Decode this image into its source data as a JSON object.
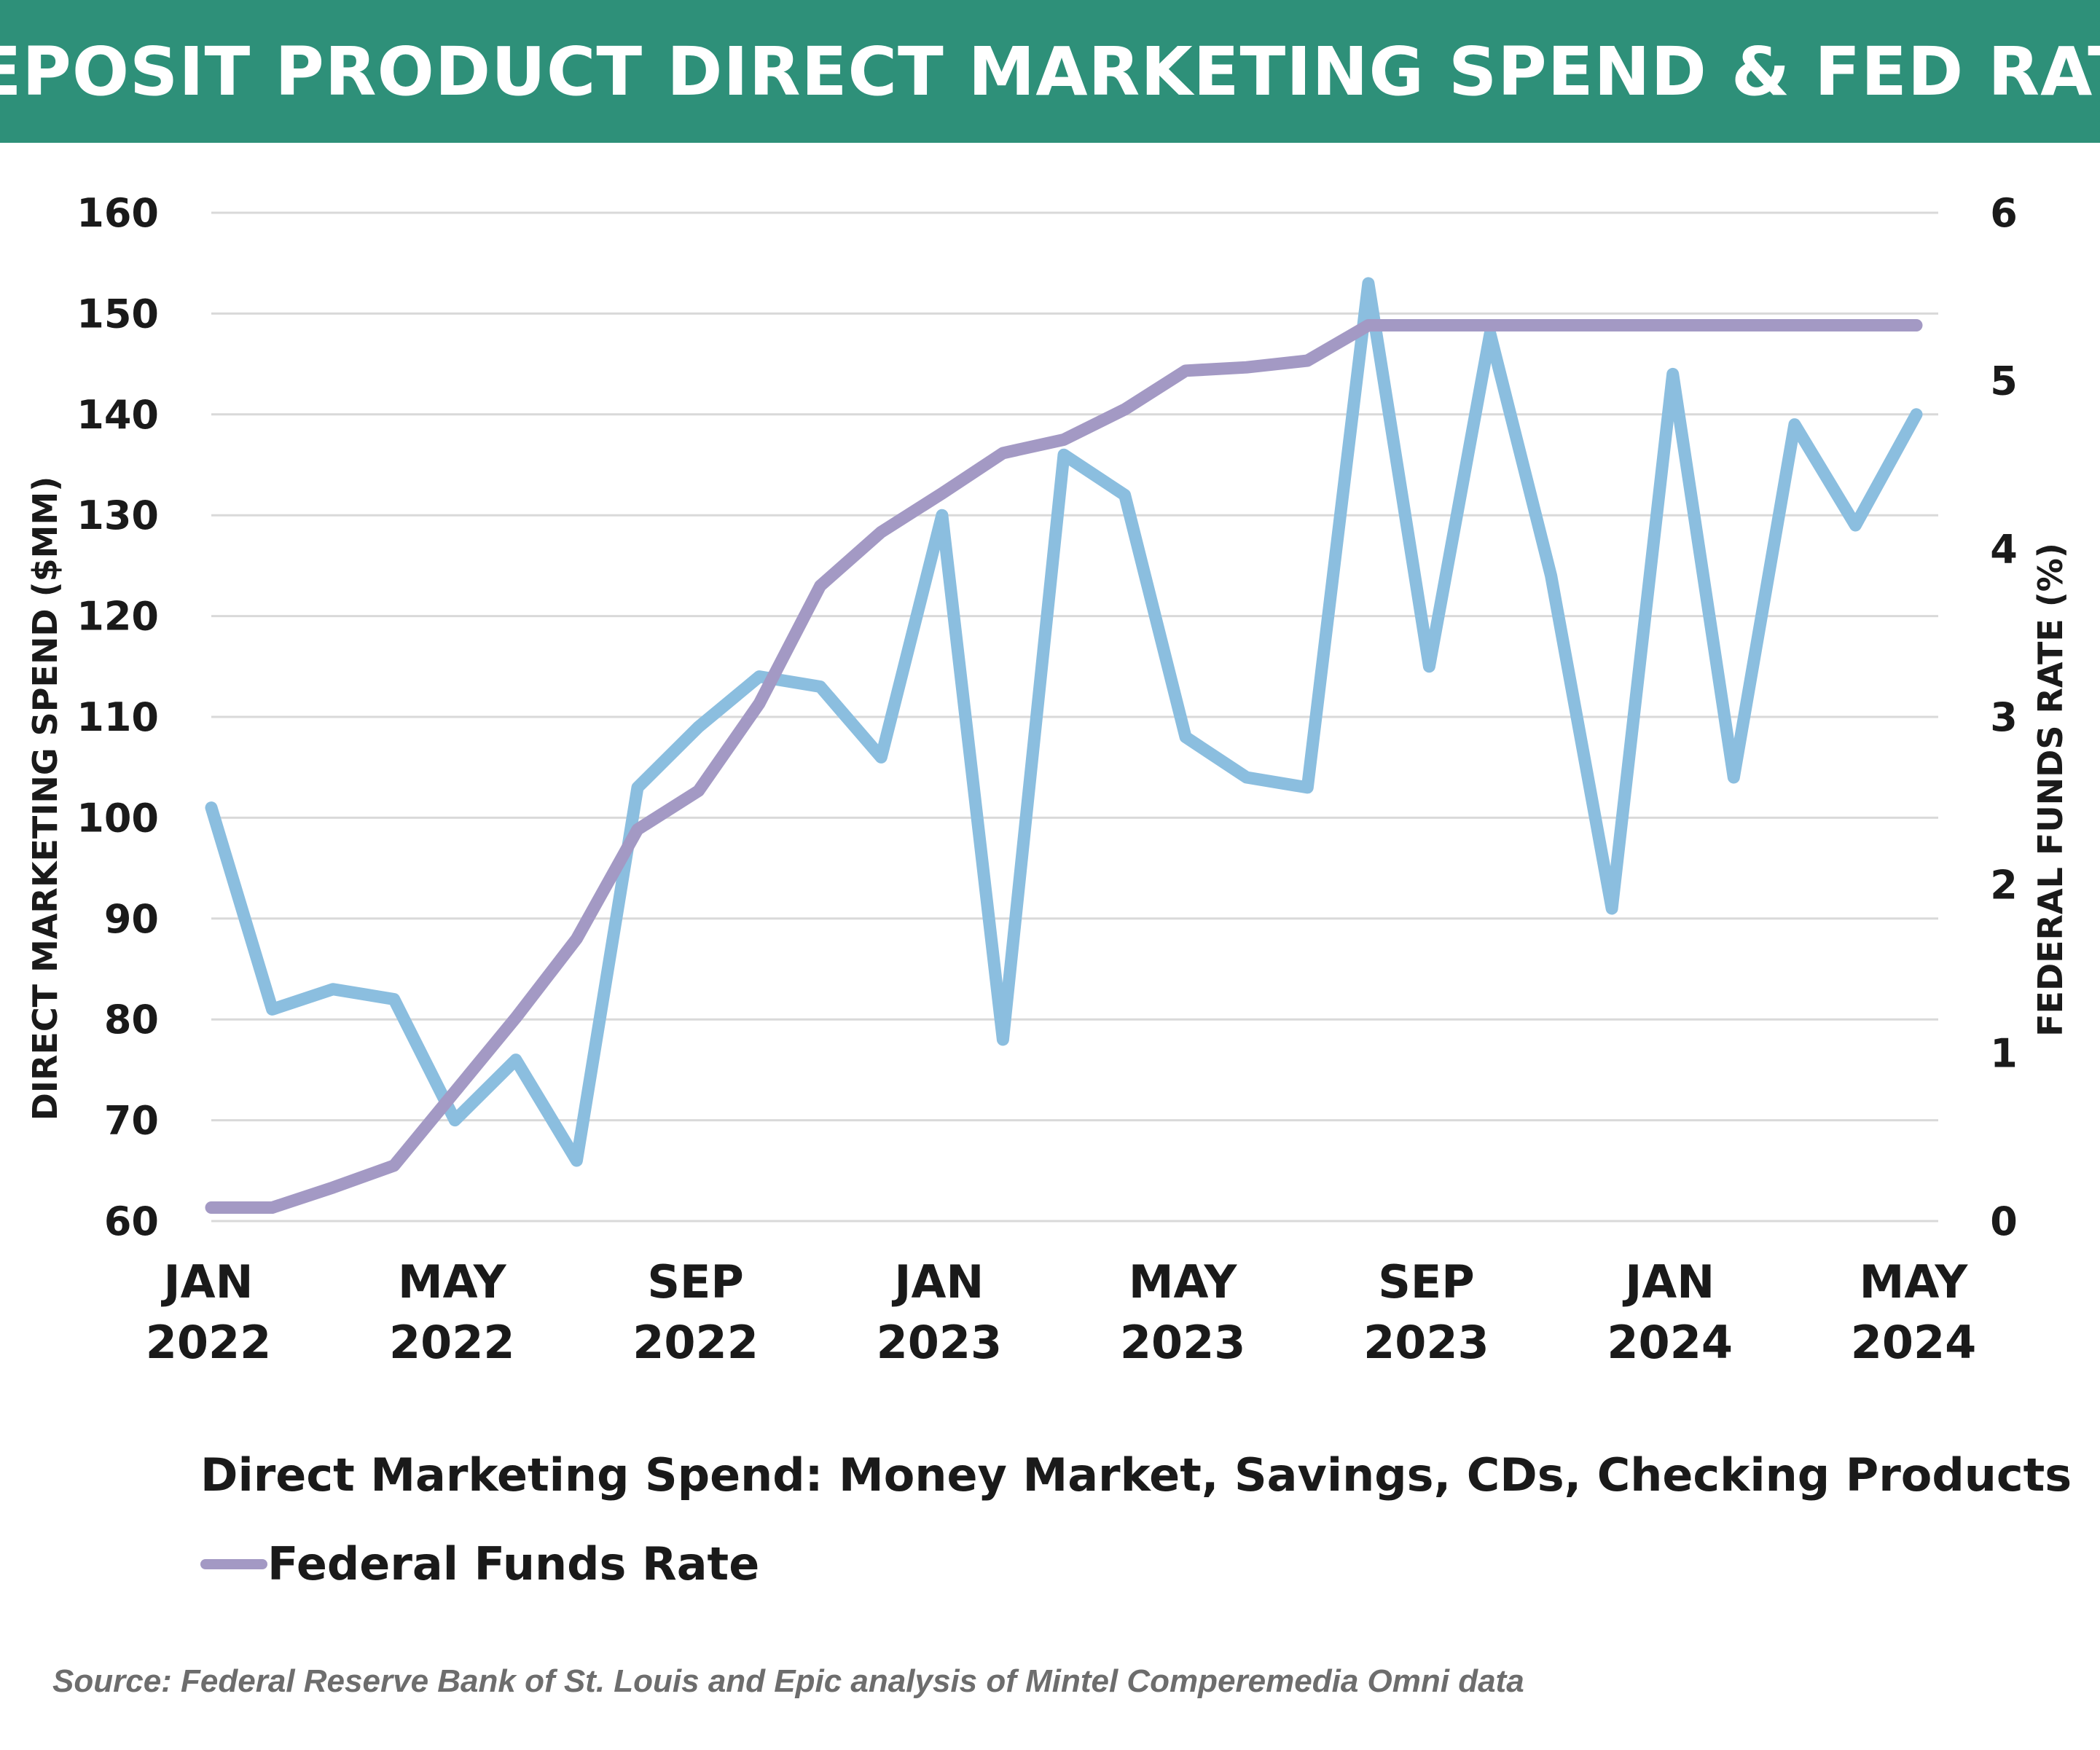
{
  "chart_data": {
    "type": "line",
    "title": "DEPOSIT PRODUCT DIRECT MARKETING SPEND & FED RATE",
    "ylabel": "DIRECT MARKETING SPEND ($MM)",
    "y2label": "FEDERAL FUNDS RATE (%)",
    "ylim": [
      60,
      160
    ],
    "y2lim": [
      0,
      6
    ],
    "yticks": [
      "60",
      "70",
      "80",
      "90",
      "100",
      "110",
      "120",
      "130",
      "140",
      "150",
      "160"
    ],
    "y2ticks": [
      "0",
      "1",
      "2",
      "3",
      "4",
      "5",
      "6"
    ],
    "x": [
      "2022-01",
      "2022-02",
      "2022-03",
      "2022-04",
      "2022-05",
      "2022-06",
      "2022-07",
      "2022-08",
      "2022-09",
      "2022-10",
      "2022-11",
      "2022-12",
      "2023-01",
      "2023-02",
      "2023-03",
      "2023-04",
      "2023-05",
      "2023-06",
      "2023-07",
      "2023-08",
      "2023-09",
      "2023-10",
      "2023-11",
      "2023-12",
      "2024-01",
      "2024-02",
      "2024-03",
      "2024-04",
      "2024-05"
    ],
    "xticks": [
      {
        "month": "JAN",
        "year": "2022",
        "x": "2022-01"
      },
      {
        "month": "MAY",
        "year": "2022",
        "x": "2022-05"
      },
      {
        "month": "SEP",
        "year": "2022",
        "x": "2022-09"
      },
      {
        "month": "JAN",
        "year": "2023",
        "x": "2023-01"
      },
      {
        "month": "MAY",
        "year": "2023",
        "x": "2023-05"
      },
      {
        "month": "SEP",
        "year": "2023",
        "x": "2023-09"
      },
      {
        "month": "JAN",
        "year": "2024",
        "x": "2024-01"
      },
      {
        "month": "MAY",
        "year": "2024",
        "x": "2024-05"
      }
    ],
    "series": [
      {
        "name": "Direct Marketing Spend: Money Market, Savings, CDs, Checking Products",
        "axis": "left",
        "color": "#8bbedf",
        "values": [
          101,
          81,
          83,
          82,
          70,
          76,
          66,
          103,
          109,
          114,
          113,
          106,
          130,
          78,
          136,
          132,
          108,
          104,
          103,
          153,
          115,
          148,
          124,
          91,
          144,
          104,
          139,
          129,
          140
        ]
      },
      {
        "name": "Federal Funds Rate",
        "axis": "right",
        "color": "#a399c4",
        "values": [
          0.08,
          0.08,
          0.2,
          0.33,
          0.77,
          1.21,
          1.68,
          2.33,
          2.56,
          3.08,
          3.78,
          4.1,
          4.33,
          4.57,
          4.65,
          4.83,
          5.06,
          5.08,
          5.12,
          5.33,
          5.33,
          5.33,
          5.33,
          5.33,
          5.33,
          5.33,
          5.33,
          5.33,
          5.33
        ]
      }
    ],
    "grid": true,
    "legend_position": "bottom"
  },
  "source": "Source: Federal Reserve Bank of St. Louis and Epic analysis of Mintel Comperemedia Omni data"
}
